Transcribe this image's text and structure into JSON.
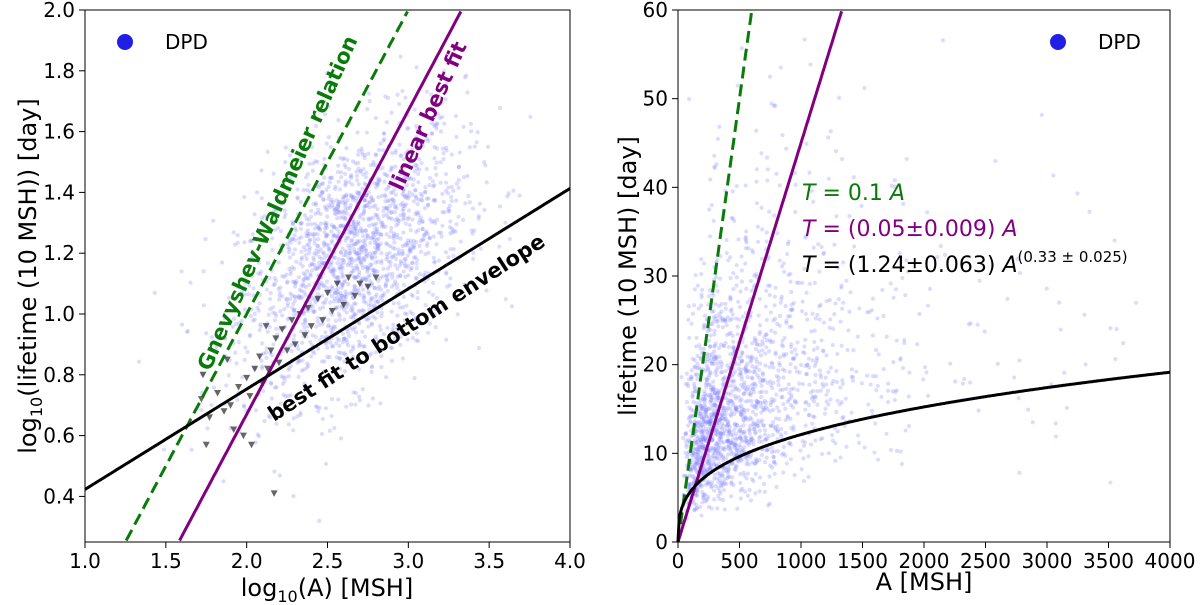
{
  "chart_data": [
    {
      "type": "scatter",
      "panel": "left",
      "xlabel": {
        "prefix": "log",
        "sub": "10",
        "rest": "(A) [MSH]"
      },
      "ylabel": {
        "prefix": "log",
        "sub": "10",
        "rest": "(lifetime (10 MSH)) [day]"
      },
      "xlim": [
        1.0,
        4.0
      ],
      "ylim": [
        0.25,
        2.0
      ],
      "xticks": [
        1.0,
        1.5,
        2.0,
        2.5,
        3.0,
        3.5,
        4.0
      ],
      "xtick_labels": [
        "1.0",
        "1.5",
        "2.0",
        "2.5",
        "3.0",
        "3.5",
        "4.0"
      ],
      "yticks": [
        0.4,
        0.6,
        0.8,
        1.0,
        1.2,
        1.4,
        1.6,
        1.8,
        2.0
      ],
      "ytick_labels": [
        "0.4",
        "0.6",
        "0.8",
        "1.0",
        "1.2",
        "1.4",
        "1.6",
        "1.8",
        "2.0"
      ],
      "legend": {
        "label": "DPD",
        "color": "#1f1fe6",
        "location": "upper-left"
      },
      "scatter_cloud": {
        "color": "#8080ff",
        "approx_center": [
          2.65,
          1.18
        ],
        "approx_spread": [
          0.35,
          0.2
        ],
        "approx_count": 1800
      },
      "envelope_points": [
        [
          1.82,
          0.74
        ],
        [
          1.86,
          0.68
        ],
        [
          1.9,
          0.7
        ],
        [
          1.95,
          0.76
        ],
        [
          2.0,
          0.79
        ],
        [
          2.02,
          0.73
        ],
        [
          2.05,
          0.82
        ],
        [
          2.08,
          0.86
        ],
        [
          2.1,
          0.77
        ],
        [
          2.13,
          0.82
        ],
        [
          2.15,
          0.88
        ],
        [
          2.18,
          0.92
        ],
        [
          2.2,
          0.84
        ],
        [
          2.22,
          0.95
        ],
        [
          2.25,
          0.88
        ],
        [
          2.28,
          0.98
        ],
        [
          2.3,
          0.9
        ],
        [
          2.33,
          1.0
        ],
        [
          2.36,
          0.93
        ],
        [
          2.38,
          1.02
        ],
        [
          2.4,
          0.96
        ],
        [
          2.44,
          1.05
        ],
        [
          2.47,
          0.98
        ],
        [
          2.5,
          1.07
        ],
        [
          2.53,
          1.01
        ],
        [
          2.56,
          1.1
        ],
        [
          2.6,
          1.03
        ],
        [
          2.63,
          1.12
        ],
        [
          2.67,
          1.06
        ],
        [
          2.7,
          1.1
        ],
        [
          2.75,
          1.09
        ],
        [
          2.8,
          1.12
        ],
        [
          1.72,
          0.72
        ],
        [
          1.77,
          0.66
        ],
        [
          1.98,
          0.6
        ],
        [
          2.03,
          0.57
        ],
        [
          1.75,
          0.57
        ],
        [
          1.92,
          0.62
        ],
        [
          2.17,
          0.41
        ],
        [
          1.73,
          0.8
        ],
        [
          1.88,
          0.85
        ],
        [
          2.12,
          0.96
        ]
      ],
      "lines": [
        {
          "name": "Gnevyshev-Waldmeier relation",
          "label": "Gnevyshev-Waldmeier relation",
          "color": "#0a7a0a",
          "dash": true,
          "slope": 1.0,
          "intercept": -1.0
        },
        {
          "name": "linear best fit",
          "label": "linear best fit",
          "color": "#800080",
          "dash": false,
          "slope": 1.0,
          "intercept": -1.33
        },
        {
          "name": "best fit to bottom envelope",
          "label": "best fit to bottom envelope",
          "color": "#000000",
          "dash": false,
          "slope": 0.33,
          "intercept": 0.093
        }
      ]
    },
    {
      "type": "scatter",
      "panel": "right",
      "xlabel": "A [MSH]",
      "ylabel": "lifetime (10 MSH) [day]",
      "xlim": [
        0,
        4000
      ],
      "ylim": [
        0,
        60
      ],
      "xticks": [
        0,
        500,
        1000,
        1500,
        2000,
        2500,
        3000,
        3500,
        4000
      ],
      "xtick_labels": [
        "0",
        "500",
        "1000",
        "1500",
        "2000",
        "2500",
        "3000",
        "3500",
        "4000"
      ],
      "yticks": [
        0,
        10,
        20,
        30,
        40,
        50,
        60
      ],
      "ytick_labels": [
        "0",
        "10",
        "20",
        "30",
        "40",
        "50",
        "60"
      ],
      "legend": {
        "label": "DPD",
        "color": "#1f1fe6",
        "location": "upper-right"
      },
      "scatter_cloud": {
        "color": "#8080ff",
        "approx_count": 1800
      },
      "lines": [
        {
          "name": "T = 0.1 A",
          "color": "#0a7a0a",
          "dash": true,
          "form": "linear",
          "coef": 0.1
        },
        {
          "name": "T = (0.05±0.009) A",
          "color": "#800080",
          "dash": false,
          "form": "linear",
          "coef": 0.045
        },
        {
          "name": "T = (1.24±0.063) A^(0.33±0.025)",
          "color": "#000000",
          "dash": false,
          "form": "power",
          "coef": 1.24,
          "exp": 0.33
        }
      ],
      "equations": [
        {
          "text_T": "T",
          "text_rest": " = 0.1 ",
          "text_A": "A",
          "color": "#0a7a0a"
        },
        {
          "text_T": "T",
          "text_rest": " = (0.05±0.009) ",
          "text_A": "A",
          "color": "#800080"
        },
        {
          "text_T": "T",
          "text_rest": " = (1.24±0.063) ",
          "text_A": "A",
          "sup": "(0.33 ± 0.025)",
          "color": "#000000"
        }
      ]
    }
  ]
}
